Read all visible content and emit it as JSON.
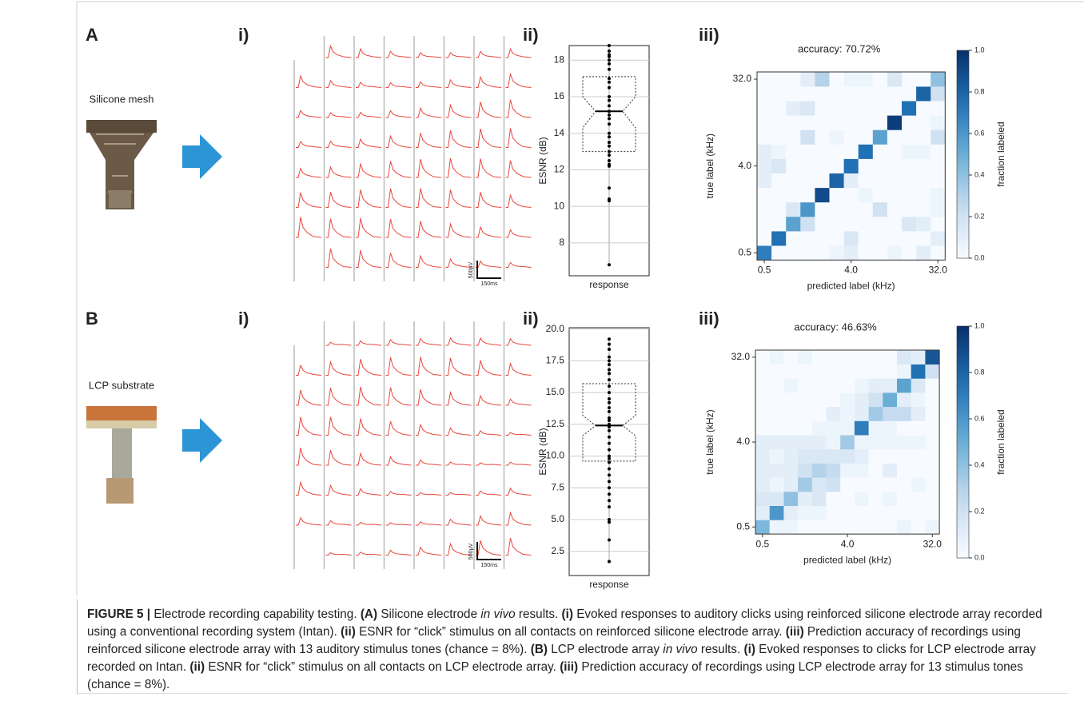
{
  "figure": {
    "panels": [
      {
        "label": "A",
        "sample": "Silicone mesh",
        "traces": {
          "label": "i)",
          "scale_v": "500µV",
          "scale_t": "150ms"
        },
        "esnr": {
          "label": "ii)",
          "type": "box",
          "ylabel": "ESNR (dB)",
          "xlabel": "response",
          "ylim": [
            6.2,
            18.8
          ],
          "yticks": [
            8,
            10,
            12,
            14,
            16,
            18
          ],
          "box": {
            "q1": 13.0,
            "median": 15.2,
            "q3": 17.1,
            "notch": [
              14.3,
              16.0
            ]
          },
          "points": [
            18.8,
            18.5,
            18.3,
            18.2,
            18.0,
            17.8,
            17.5,
            17.0,
            16.8,
            16.5,
            16.0,
            15.8,
            15.5,
            15.2,
            15.0,
            14.8,
            14.5,
            14.0,
            13.8,
            13.5,
            13.3,
            13.0,
            12.8,
            12.5,
            12.3,
            12.2,
            11.0,
            10.4,
            10.3,
            6.8
          ]
        },
        "confusion": {
          "label": "iii)",
          "type": "heatmap",
          "title": "accuracy: 70.72%",
          "xlabel": "predicted label (kHz)",
          "ylabel": "true label (kHz)",
          "ticks": [
            {
              "value": 0,
              "label": "0.5"
            },
            {
              "value": 6,
              "label": "4.0"
            },
            {
              "value": 12,
              "label": "32.0"
            }
          ],
          "matrix": [
            [
              0.7,
              0,
              0,
              0,
              0,
              0.05,
              0.1,
              0,
              0,
              0.05,
              0,
              0.1,
              0
            ],
            [
              0,
              0.75,
              0,
              0,
              0,
              0,
              0.15,
              0,
              0,
              0,
              0,
              0,
              0.1
            ],
            [
              0,
              0,
              0.55,
              0.2,
              0,
              0,
              0,
              0,
              0,
              0,
              0.15,
              0.1,
              0
            ],
            [
              0,
              0,
              0.15,
              0.6,
              0,
              0,
              0,
              0,
              0.2,
              0,
              0,
              0,
              0.05
            ],
            [
              0,
              0,
              0,
              0,
              0.9,
              0,
              0,
              0.05,
              0,
              0,
              0,
              0,
              0.05
            ],
            [
              0.1,
              0,
              0,
              0,
              0,
              0.8,
              0.1,
              0,
              0,
              0,
              0,
              0,
              0
            ],
            [
              0.1,
              0.15,
              0,
              0,
              0,
              0,
              0.75,
              0,
              0,
              0,
              0,
              0,
              0
            ],
            [
              0.1,
              0.05,
              0,
              0,
              0,
              0,
              0,
              0.75,
              0,
              0,
              0.05,
              0.05,
              0
            ],
            [
              0,
              0,
              0,
              0.2,
              0,
              0.05,
              0,
              0,
              0.55,
              0,
              0,
              0,
              0.2
            ],
            [
              0,
              0,
              0,
              0,
              0,
              0,
              0,
              0,
              0,
              0.95,
              0,
              0,
              0.05
            ],
            [
              0,
              0,
              0.1,
              0.15,
              0,
              0,
              0,
              0,
              0,
              0,
              0.75,
              0,
              0
            ],
            [
              0,
              0,
              0,
              0,
              0,
              0,
              0,
              0,
              0,
              0,
              0,
              0.8,
              0.2
            ],
            [
              0,
              0,
              0,
              0.1,
              0.3,
              0,
              0.05,
              0.05,
              0,
              0.15,
              0,
              0,
              0.4
            ]
          ],
          "colorbar": {
            "label": "fraction labeled",
            "clim": [
              0,
              1
            ],
            "ticks": [
              {
                "value": 0,
                "label": "0.0"
              },
              {
                "value": 0.2,
                "label": "0.2"
              },
              {
                "value": 0.4,
                "label": "0.4"
              },
              {
                "value": 0.6,
                "label": "0.6"
              },
              {
                "value": 0.8,
                "label": "0.8"
              },
              {
                "value": 1,
                "label": "1.0"
              }
            ]
          }
        }
      },
      {
        "label": "B",
        "sample": "LCP substrate",
        "traces": {
          "label": "i)",
          "scale_v": "500µV",
          "scale_t": "150ms"
        },
        "esnr": {
          "label": "ii)",
          "type": "box",
          "ylabel": "ESNR (dB)",
          "xlabel": "response",
          "ylim": [
            0.6,
            20.1
          ],
          "yticks": [
            {
              "value": 2.5,
              "label": "2.5"
            },
            {
              "value": 5,
              "label": "5.0"
            },
            {
              "value": 7.5,
              "label": "7.5"
            },
            {
              "value": 10,
              "label": "10.0"
            },
            {
              "value": 12.5,
              "label": "12.5"
            },
            {
              "value": 15,
              "label": "15.0"
            },
            {
              "value": 17.5,
              "label": "17.5"
            },
            {
              "value": 20,
              "label": "20.0"
            }
          ],
          "box": {
            "q1": 9.6,
            "median": 12.4,
            "q3": 15.7,
            "notch": [
              11.6,
              13.2
            ]
          },
          "points": [
            19.2,
            18.8,
            18.4,
            17.8,
            17.5,
            17.2,
            16.8,
            16.5,
            16.0,
            15.5,
            15.0,
            14.5,
            14.2,
            13.8,
            13.5,
            13.0,
            12.8,
            12.5,
            12.3,
            12.0,
            11.5,
            11.0,
            10.5,
            10.0,
            9.8,
            9.5,
            9.0,
            8.5,
            8.0,
            7.5,
            7.0,
            6.5,
            6.0,
            5.0,
            4.8,
            3.4,
            1.7
          ]
        },
        "confusion": {
          "label": "iii)",
          "type": "heatmap",
          "title": "accuracy: 46.63%",
          "xlabel": "predicted label (kHz)",
          "ylabel": "true label (kHz)",
          "ticks": [
            {
              "value": 0,
              "label": "0.5"
            },
            {
              "value": 6,
              "label": "4.0"
            },
            {
              "value": 12,
              "label": "32.0"
            }
          ],
          "matrix": [
            [
              0.45,
              0.05,
              0.05,
              0,
              0,
              0,
              0,
              0,
              0,
              0,
              0.05,
              0,
              0.05
            ],
            [
              0.1,
              0.6,
              0.1,
              0.05,
              0.05,
              0,
              0,
              0,
              0,
              0,
              0,
              0,
              0
            ],
            [
              0.15,
              0.15,
              0.4,
              0.1,
              0.15,
              0,
              0,
              0.05,
              0,
              0.05,
              0,
              0,
              0
            ],
            [
              0.1,
              0.05,
              0.1,
              0.35,
              0.15,
              0.2,
              0,
              0,
              0,
              0,
              0,
              0.05,
              0
            ],
            [
              0.1,
              0.1,
              0.1,
              0.2,
              0.3,
              0.25,
              0.05,
              0.05,
              0,
              0.1,
              0,
              0,
              0
            ],
            [
              0.1,
              0.05,
              0.1,
              0.15,
              0.15,
              0.15,
              0.15,
              0.1,
              0,
              0,
              0,
              0,
              0
            ],
            [
              0.1,
              0.1,
              0.1,
              0.1,
              0.1,
              0.05,
              0.35,
              0.05,
              0.05,
              0.05,
              0.05,
              0.05,
              0
            ],
            [
              0,
              0,
              0,
              0,
              0.05,
              0.05,
              0.05,
              0.7,
              0.05,
              0.05,
              0,
              0,
              0
            ],
            [
              0,
              0,
              0,
              0,
              0,
              0.1,
              0.05,
              0.1,
              0.35,
              0.25,
              0.25,
              0.1,
              0
            ],
            [
              0,
              0,
              0,
              0,
              0,
              0,
              0.05,
              0.1,
              0.2,
              0.5,
              0.1,
              0.05,
              0
            ],
            [
              0,
              0,
              0.05,
              0,
              0,
              0,
              0,
              0.05,
              0.1,
              0.1,
              0.55,
              0.15,
              0
            ],
            [
              0,
              0,
              0,
              0,
              0,
              0,
              0,
              0,
              0,
              0,
              0.05,
              0.75,
              0.2
            ],
            [
              0,
              0.05,
              0,
              0.05,
              0,
              0,
              0,
              0,
              0,
              0,
              0.15,
              0.1,
              0.85
            ]
          ],
          "colorbar": {
            "label": "fraction labeled",
            "clim": [
              0,
              1
            ],
            "ticks": [
              {
                "value": 0,
                "label": "0.0"
              },
              {
                "value": 0.2,
                "label": "0.2"
              },
              {
                "value": 0.4,
                "label": "0.4"
              },
              {
                "value": 0.6,
                "label": "0.6"
              },
              {
                "value": 0.8,
                "label": "0.8"
              },
              {
                "value": 1,
                "label": "1.0"
              }
            ]
          }
        }
      }
    ],
    "caption": [
      {
        "text": "FIGURE 5 |",
        "style": "bold"
      },
      {
        "text": " Electrode recording capability testing. ",
        "style": "normal"
      },
      {
        "text": "(A)",
        "style": "bold"
      },
      {
        "text": " Silicone electrode ",
        "style": "normal"
      },
      {
        "text": "in vivo",
        "style": "italic"
      },
      {
        "text": " results. ",
        "style": "normal"
      },
      {
        "text": "(i)",
        "style": "bold"
      },
      {
        "text": " Evoked responses to auditory clicks using reinforced silicone electrode array recorded using a conventional recording system (Intan). ",
        "style": "normal"
      },
      {
        "text": "(ii)",
        "style": "bold"
      },
      {
        "text": " ESNR for “click” stimulus on all contacts on reinforced silicone electrode array. ",
        "style": "normal"
      },
      {
        "text": "(iii)",
        "style": "bold"
      },
      {
        "text": " Prediction accuracy of recordings using reinforced silicone electrode array with 13 auditory stimulus tones (chance = 8%). ",
        "style": "normal"
      },
      {
        "text": "(B)",
        "style": "bold"
      },
      {
        "text": " LCP electrode array ",
        "style": "normal"
      },
      {
        "text": "in vivo",
        "style": "italic"
      },
      {
        "text": " results. ",
        "style": "normal"
      },
      {
        "text": "(i)",
        "style": "bold"
      },
      {
        "text": " Evoked responses to clicks for LCP electrode array recorded on Intan. ",
        "style": "normal"
      },
      {
        "text": "(ii)",
        "style": "bold"
      },
      {
        "text": " ESNR for “click” stimulus on all contacts on LCP electrode array. ",
        "style": "normal"
      },
      {
        "text": "(iii)",
        "style": "bold"
      },
      {
        "text": " Prediction accuracy of recordings using LCP electrode array for 13 stimulus tones (chance = 8%).",
        "style": "normal"
      }
    ]
  }
}
